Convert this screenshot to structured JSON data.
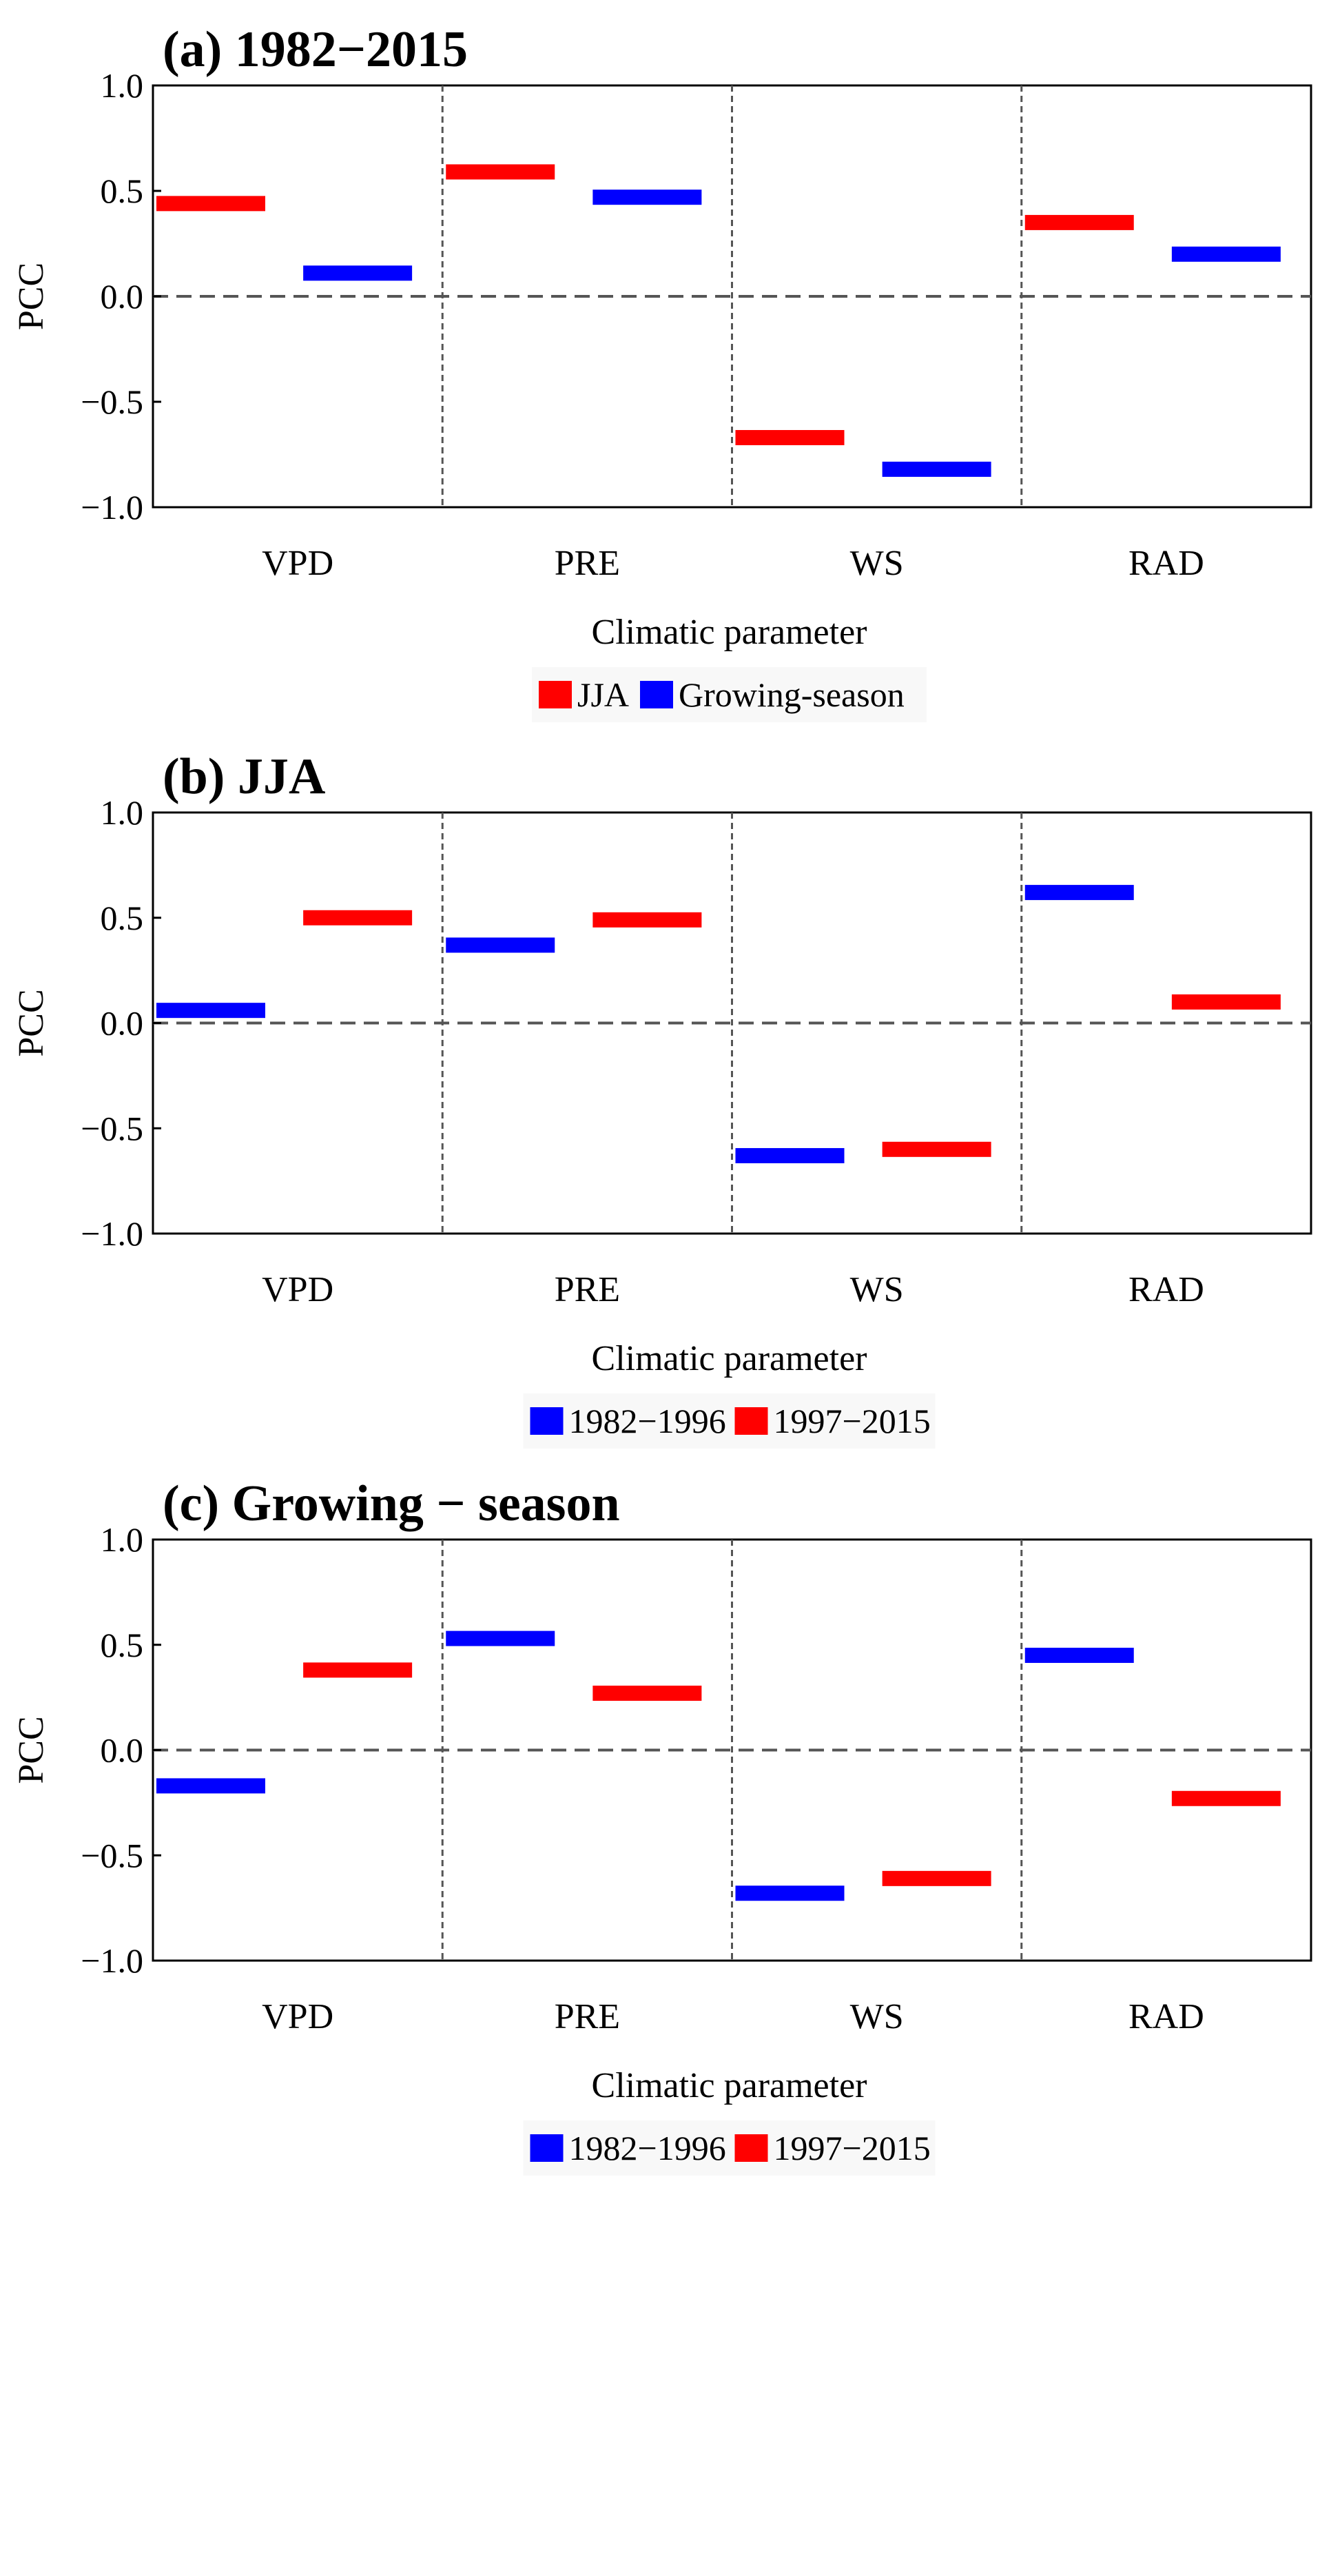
{
  "chart_data": [
    {
      "type": "bar",
      "title": "(a) 1982−2015",
      "categories": [
        "VPD",
        "PRE",
        "WS",
        "RAD"
      ],
      "xlabel": "Climatic parameter",
      "ylabel": "PCC",
      "ylim": [
        -1.0,
        1.0
      ],
      "yticks": [
        "1.0",
        "0.5",
        "0.0",
        "−0.5",
        "−1.0"
      ],
      "legend_position": "bottom-center",
      "series": [
        {
          "name": "JJA",
          "color": "#ff0000",
          "values": [
            0.44,
            0.59,
            -0.67,
            0.35
          ]
        },
        {
          "name": "Growing-season",
          "color": "#0000ff",
          "values": [
            0.11,
            0.47,
            -0.82,
            0.2
          ]
        }
      ]
    },
    {
      "type": "bar",
      "title": "(b) JJA",
      "categories": [
        "VPD",
        "PRE",
        "WS",
        "RAD"
      ],
      "xlabel": "Climatic parameter",
      "ylabel": "PCC",
      "ylim": [
        -1.0,
        1.0
      ],
      "yticks": [
        "1.0",
        "0.5",
        "0.0",
        "−0.5",
        "−1.0"
      ],
      "legend_position": "bottom-center",
      "series": [
        {
          "name": "1982−1996",
          "color": "#0000ff",
          "values": [
            0.06,
            0.37,
            -0.63,
            0.62
          ]
        },
        {
          "name": "1997−2015",
          "color": "#ff0000",
          "values": [
            0.5,
            0.49,
            -0.6,
            0.1
          ]
        }
      ]
    },
    {
      "type": "bar",
      "title": "(c) Growing − season",
      "categories": [
        "VPD",
        "PRE",
        "WS",
        "RAD"
      ],
      "xlabel": "Climatic parameter",
      "ylabel": "PCC",
      "ylim": [
        -1.0,
        1.0
      ],
      "yticks": [
        "1.0",
        "0.5",
        "0.0",
        "−0.5",
        "−1.0"
      ],
      "legend_position": "bottom-center",
      "series": [
        {
          "name": "1982−1996",
          "color": "#0000ff",
          "values": [
            -0.17,
            0.53,
            -0.68,
            0.45
          ]
        },
        {
          "name": "1997−2015",
          "color": "#ff0000",
          "values": [
            0.38,
            0.27,
            -0.61,
            -0.23
          ]
        }
      ]
    }
  ]
}
